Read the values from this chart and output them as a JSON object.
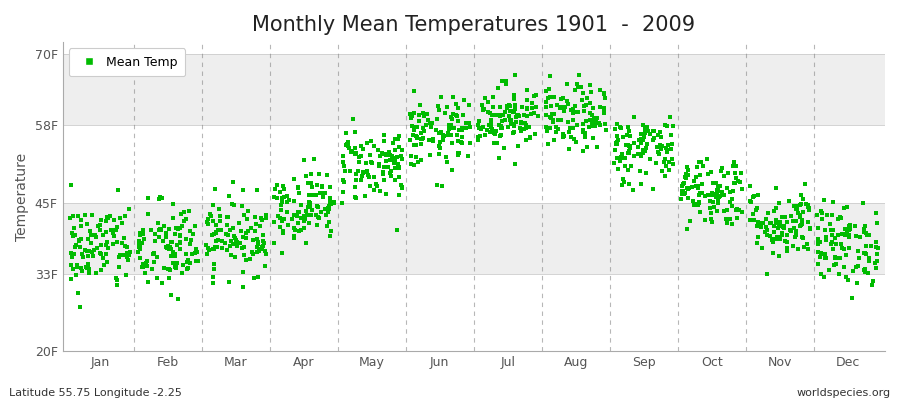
{
  "title": "Monthly Mean Temperatures 1901  -  2009",
  "ylabel": "Temperature",
  "dot_color": "#00bb00",
  "bg_white": "#ffffff",
  "bg_band": "#eeeeee",
  "ylim": [
    20,
    72
  ],
  "yticks": [
    20,
    33,
    45,
    58,
    70
  ],
  "ytick_labels": [
    "20F",
    "33F",
    "45F",
    "58F",
    "70F"
  ],
  "months": [
    "Jan",
    "Feb",
    "Mar",
    "Apr",
    "May",
    "Jun",
    "Jul",
    "Aug",
    "Sep",
    "Oct",
    "Nov",
    "Dec"
  ],
  "month_means_F": [
    37.5,
    37.2,
    39.5,
    44.5,
    51.5,
    56.5,
    59.5,
    59.2,
    54.0,
    47.0,
    41.5,
    38.0
  ],
  "month_stds_F": [
    3.8,
    4.0,
    3.2,
    3.0,
    3.2,
    3.0,
    2.8,
    2.8,
    3.0,
    3.0,
    3.0,
    3.5
  ],
  "n_years": 109,
  "subtitle_left": "Latitude 55.75 Longitude -2.25",
  "subtitle_right": "worldspecies.org",
  "legend_label": "Mean Temp",
  "marker_size": 9,
  "font_size_title": 15,
  "font_size_ticks": 9,
  "font_size_ylabel": 10,
  "font_size_subtitle": 8,
  "dashed_color": "#888888",
  "spine_color": "#aaaaaa"
}
